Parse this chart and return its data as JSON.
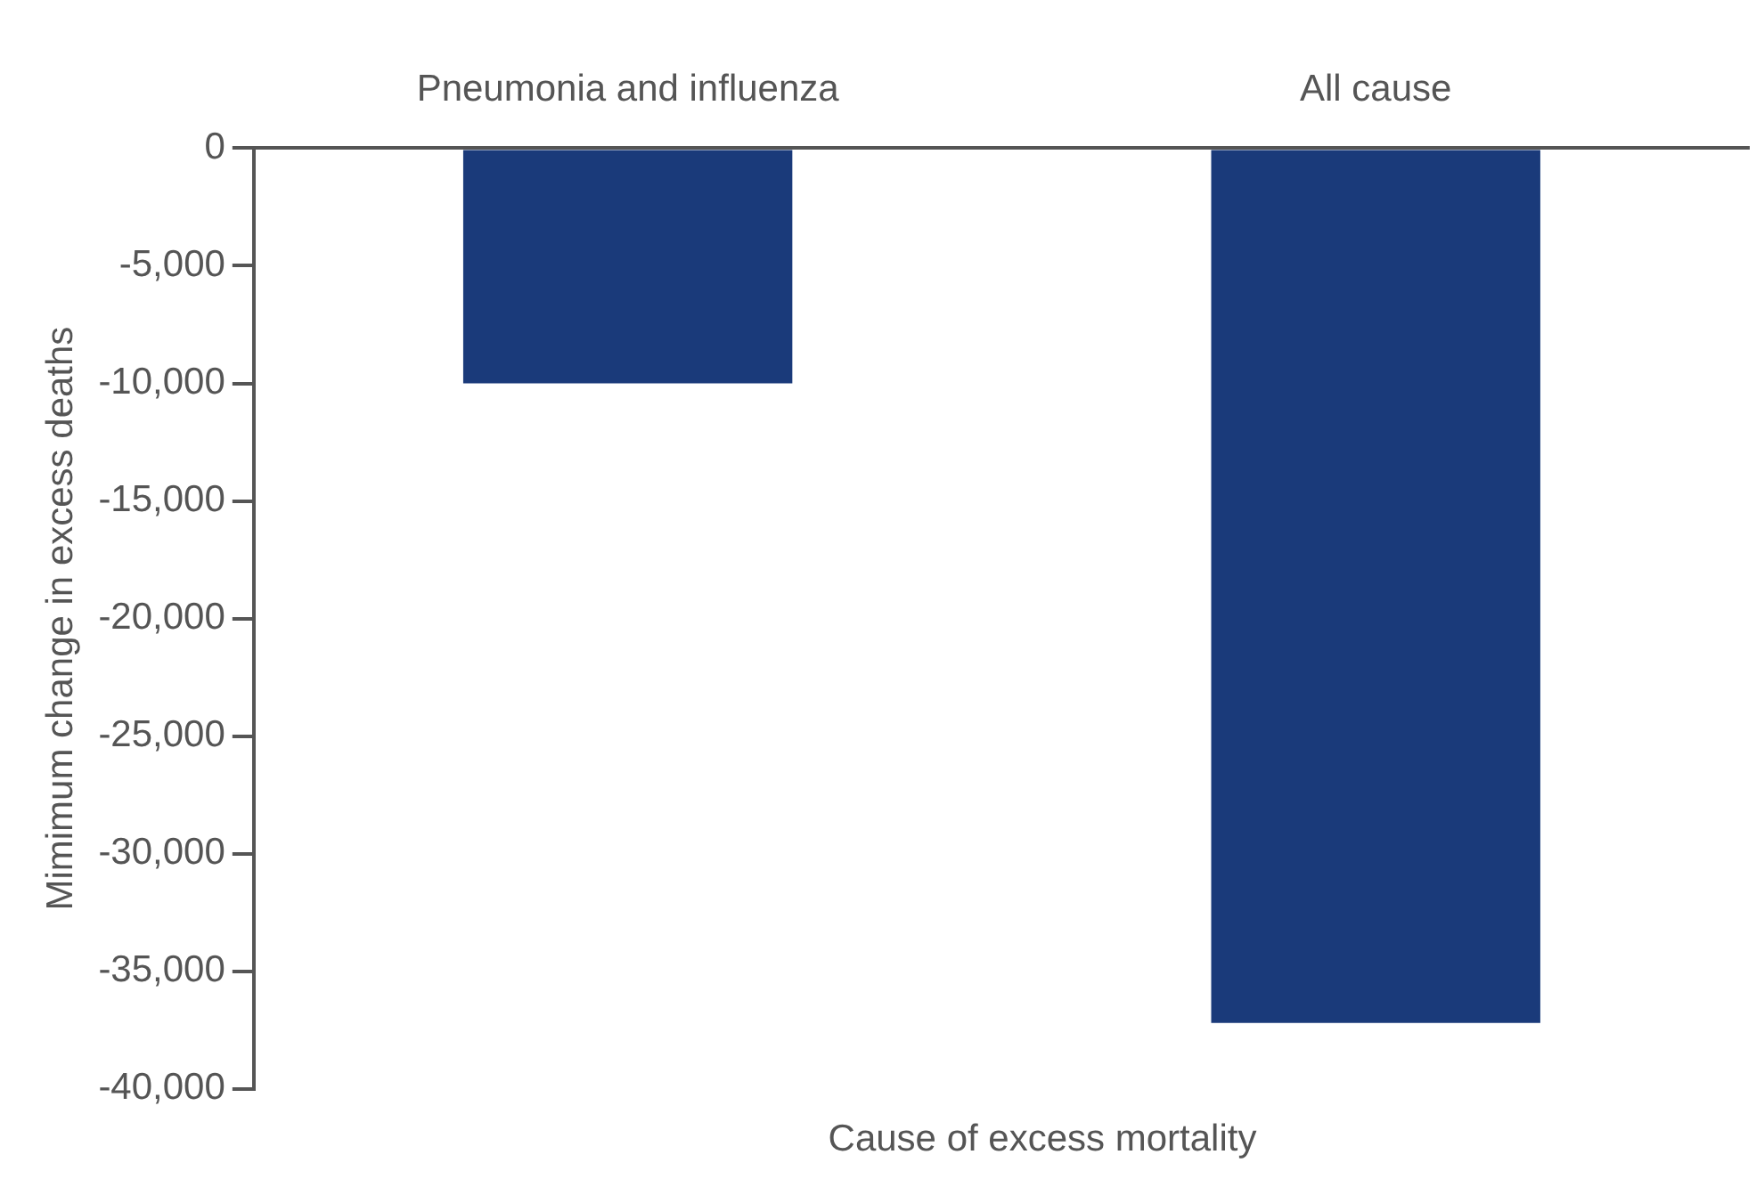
{
  "chart_data": {
    "type": "bar",
    "xlabel": "Cause of excess mortality",
    "ylabel": "Mimimum change in excess deaths",
    "categories": [
      "Pneumonia and influenza",
      "All cause"
    ],
    "series": [
      {
        "color": "#1a3a7a",
        "values": [
          -10000,
          -37200
        ]
      }
    ],
    "ylim": [
      -40000,
      0
    ],
    "yticks": [
      {
        "value": -40000,
        "label": "-40,000"
      },
      {
        "value": -35000,
        "label": "-35,000"
      },
      {
        "value": -30000,
        "label": "-30,000"
      },
      {
        "value": -25000,
        "label": "-25,000"
      },
      {
        "value": -20000,
        "label": "-20,000"
      },
      {
        "value": -15000,
        "label": "-15,000"
      },
      {
        "value": -10000,
        "label": "-10,000"
      },
      {
        "value": -5000,
        "label": "-5,000"
      },
      {
        "value": 0,
        "label": "0"
      }
    ],
    "grid": false,
    "legend": false
  }
}
